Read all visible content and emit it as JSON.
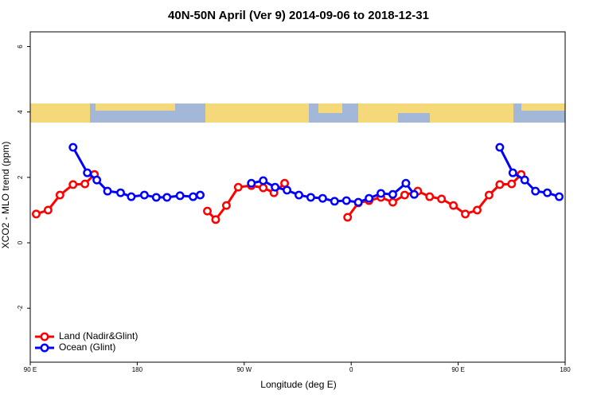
{
  "chart_data": {
    "type": "line",
    "title": "40N-50N April (Ver 9)   2014-09-06 to 2018-12-31",
    "x_label": "Longitude (deg E)",
    "y_label": "XCO2 - MLO trend (ppm)",
    "xlim": [
      90,
      540
    ],
    "ylim": [
      -3.65,
      6.45
    ],
    "xticks": [
      {
        "value": 90,
        "label": "90 E"
      },
      180,
      {
        "value": 270,
        "label": "90 W"
      },
      {
        "value": 360,
        "label": "0"
      },
      {
        "value": 450,
        "label": "90 E"
      },
      {
        "value": 540,
        "label": "180"
      }
    ],
    "yticks": [
      -2,
      0,
      2,
      4,
      6
    ],
    "legend": "bottom-left",
    "series": [
      {
        "name": "Land (Nadir&Glint)",
        "color": "#ff0000",
        "x": [
          95,
          105,
          115,
          126,
          136,
          144,
          null,
          239,
          246,
          255,
          265,
          276,
          286,
          295,
          304,
          null,
          357,
          366,
          375,
          385,
          395,
          405,
          416,
          426,
          436,
          446,
          456,
          466,
          476,
          485,
          495,
          503
        ],
        "values": [
          0.88,
          1.0,
          1.46,
          1.78,
          1.8,
          2.09,
          null,
          0.97,
          0.71,
          1.14,
          1.7,
          1.75,
          1.68,
          1.53,
          1.82,
          null,
          0.78,
          1.22,
          1.29,
          1.39,
          1.24,
          1.46,
          1.58,
          1.41,
          1.34,
          1.14,
          0.88,
          1.0,
          1.46,
          1.78,
          1.8,
          2.09
        ]
      },
      {
        "name": "Ocean (Glint)",
        "color": "#0000ff",
        "x": [
          126,
          138,
          146,
          155,
          166,
          175,
          186,
          196,
          205,
          216,
          227,
          233,
          null,
          276,
          286,
          296,
          306,
          316,
          326,
          336,
          346,
          356,
          366,
          375,
          385,
          395,
          406,
          413,
          null,
          485,
          496,
          506,
          515,
          525,
          535
        ],
        "values": [
          2.92,
          2.14,
          1.92,
          1.58,
          1.53,
          1.41,
          1.46,
          1.39,
          1.39,
          1.44,
          1.41,
          1.46,
          null,
          1.82,
          1.9,
          1.7,
          1.61,
          1.46,
          1.39,
          1.36,
          1.27,
          1.29,
          1.24,
          1.36,
          1.51,
          1.48,
          1.82,
          1.48,
          null,
          2.92,
          2.14,
          1.92,
          1.58,
          1.53,
          1.41
        ]
      }
    ]
  }
}
